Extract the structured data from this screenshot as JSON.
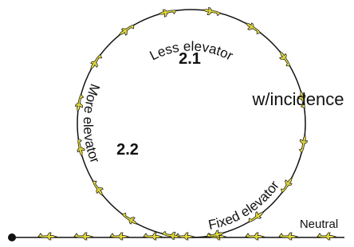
{
  "labels": {
    "top_arc": "Less elevator",
    "top_number": "2.1",
    "right": "w/incidence",
    "left_arc": "More elevator",
    "left_number": "2.2",
    "bottom_arc": "Fixed elevator",
    "line": "Neutral"
  }
}
